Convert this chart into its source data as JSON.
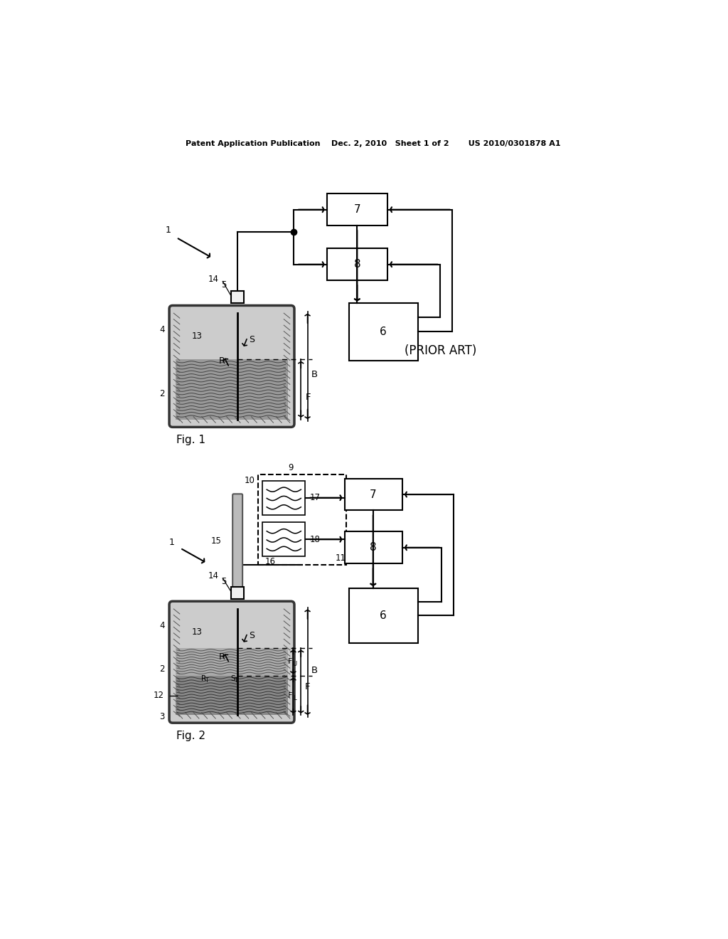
{
  "bg_color": "#ffffff",
  "header_text": "Patent Application Publication    Dec. 2, 2010   Sheet 1 of 2       US 2010/0301878 A1",
  "fig1_label": "Fig. 1",
  "fig2_label": "Fig. 2",
  "prior_art_label": "(PRIOR ART)"
}
